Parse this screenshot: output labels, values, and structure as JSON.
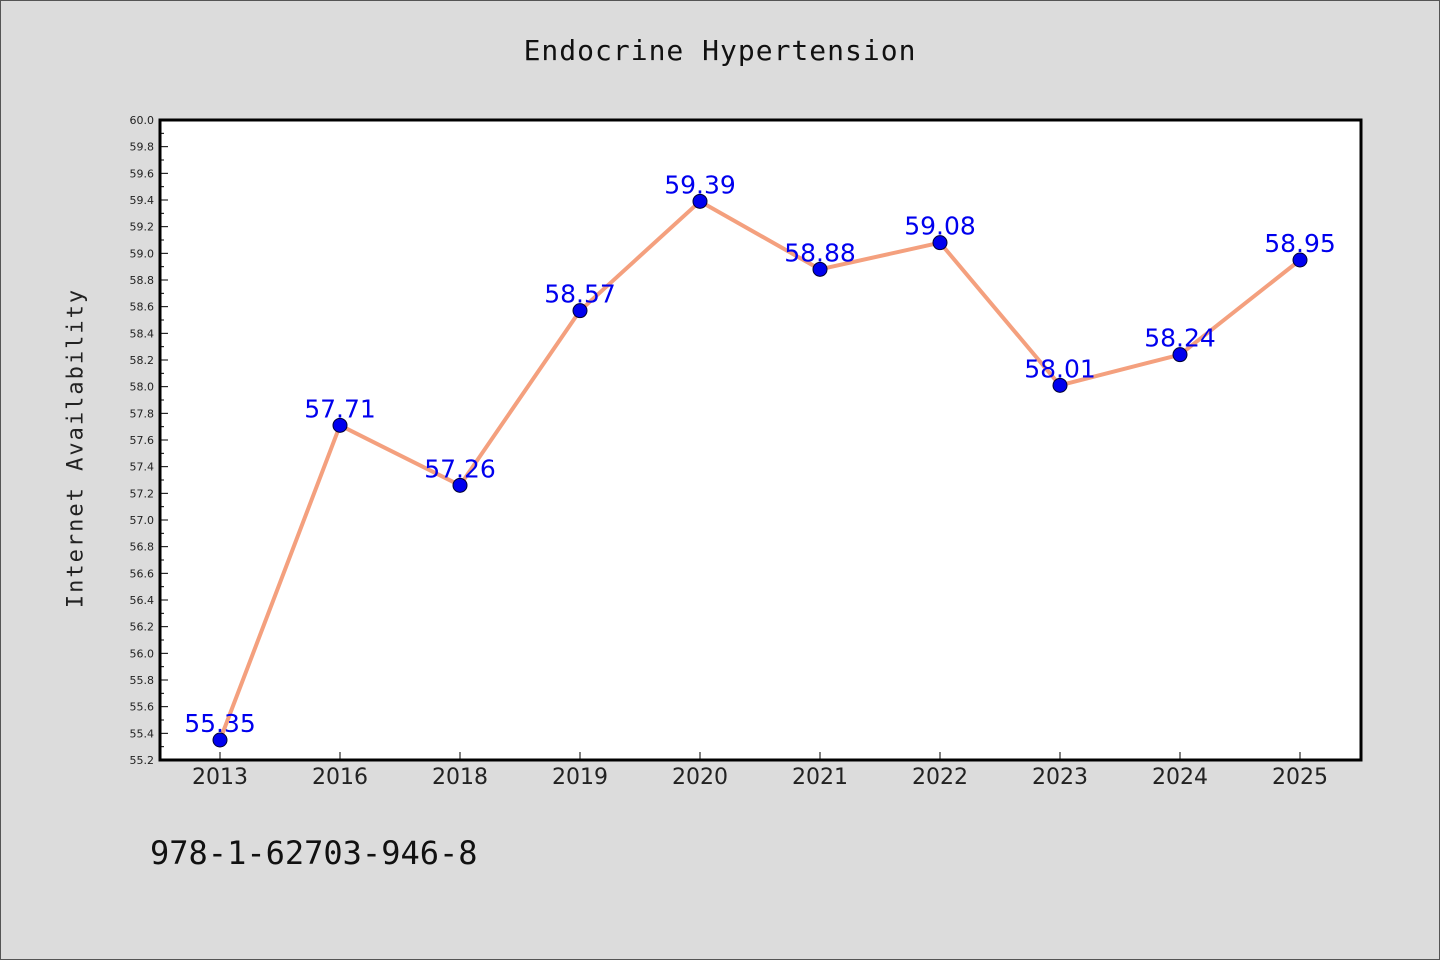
{
  "chart_data": {
    "type": "line",
    "title": "Endocrine Hypertension",
    "ylabel": "Internet Availability",
    "xlabel": "",
    "categories": [
      "2013",
      "2016",
      "2018",
      "2019",
      "2020",
      "2021",
      "2022",
      "2023",
      "2024",
      "2025"
    ],
    "series": [
      {
        "values": [
          55.35,
          57.71,
          57.26,
          58.57,
          59.39,
          58.88,
          59.08,
          58.01,
          58.24,
          58.95
        ],
        "data_labels": [
          "55.35",
          "57.71",
          "57.26",
          "58.57",
          "59.39",
          "58.88",
          "59.08",
          "58.01",
          "58.24",
          "58.95"
        ],
        "line_color": "#f4a07e",
        "marker_color": "#0000ee"
      }
    ],
    "ylim": [
      55.2,
      60.0
    ],
    "yticks": [
      "55.2",
      "55.4",
      "55.6",
      "55.8",
      "56.0",
      "56.2",
      "56.4",
      "56.6",
      "56.8",
      "57.0",
      "57.2",
      "57.4",
      "57.6",
      "57.8",
      "58.0",
      "58.2",
      "58.4",
      "58.6",
      "58.8",
      "59.0",
      "59.2",
      "59.4",
      "59.6",
      "59.8",
      "60.0"
    ],
    "grid": false,
    "legend": "none"
  },
  "footer": {
    "code": "978-1-62703-946-8"
  },
  "colors": {
    "background": "#dcdcdc",
    "plot_background": "#ffffff",
    "line": "#f4a07e",
    "marker": "#0000ee",
    "data_label": "#0000ee"
  }
}
